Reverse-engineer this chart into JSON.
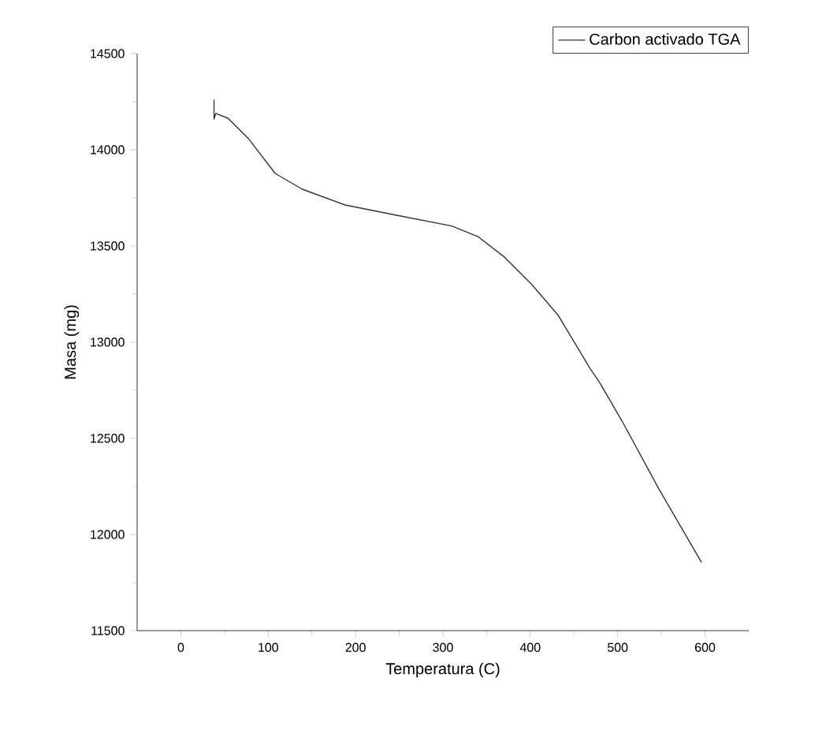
{
  "chart_data": {
    "type": "line",
    "xlabel": "Temperatura (C)",
    "ylabel": "Masa (mg)",
    "xlim": [
      -50,
      650
    ],
    "xticks": [
      0,
      100,
      200,
      300,
      400,
      500,
      600
    ],
    "ylim": [
      11500,
      14500
    ],
    "yticks": [
      11500,
      12000,
      12500,
      13000,
      13500,
      14000,
      14500
    ],
    "legend": "top right",
    "grid": false,
    "series": [
      {
        "name": "Carbon activado TGA",
        "color": "#333333",
        "x": [
          38,
          38,
          40,
          54,
          78,
          108,
          139,
          188,
          249,
          310,
          340,
          371,
          401,
          432,
          468,
          480,
          505,
          547,
          596
        ],
        "values": [
          14260,
          14160,
          14189,
          14164,
          14055,
          13877,
          13795,
          13713,
          13658,
          13604,
          13549,
          13440,
          13303,
          13139,
          12866,
          12785,
          12590,
          12238,
          11855
        ]
      }
    ]
  }
}
